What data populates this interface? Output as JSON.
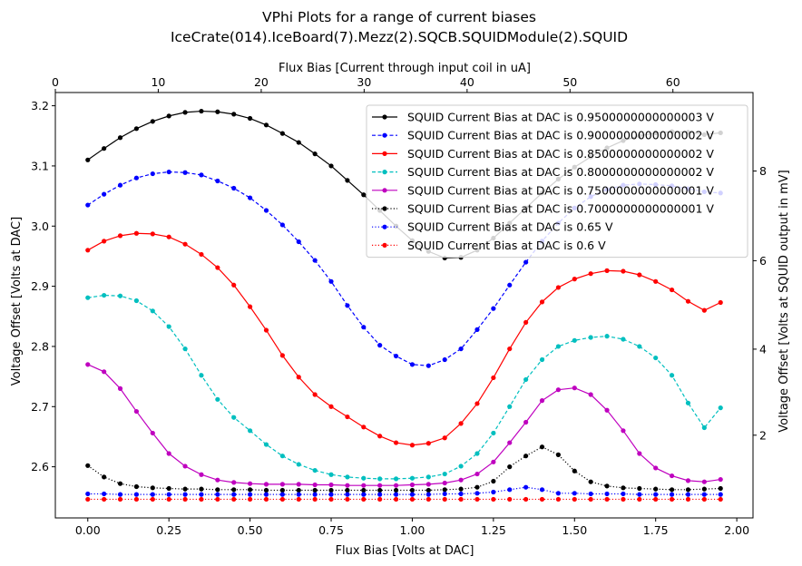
{
  "chart_data": {
    "type": "line",
    "title": [
      "VPhi Plots for a range of current biases",
      "IceCrate(014).IceBoard(7).Mezz(2).SQCB.SQUIDModule(2).SQUID"
    ],
    "xlabel": "Flux Bias [Volts at DAC]",
    "ylabel": "Voltage Offset [Volts at DAC]",
    "top_xlabel": "Flux Bias [Current through input coil in uA]",
    "right_ylabel": "Voltage Offset [Volts at SQUID output in mV]",
    "xlim": [
      -0.1,
      2.05
    ],
    "ylim": [
      2.515,
      3.222
    ],
    "x_ticks": [
      0.0,
      0.25,
      0.5,
      0.75,
      1.0,
      1.25,
      1.5,
      1.75,
      2.0
    ],
    "x_tick_labels": [
      "0.00",
      "0.25",
      "0.50",
      "0.75",
      "1.00",
      "1.25",
      "1.50",
      "1.75",
      "2.00"
    ],
    "y_ticks": [
      2.6,
      2.7,
      2.8,
      2.9,
      3.0,
      3.1,
      3.2
    ],
    "y_tick_labels": [
      "2.6",
      "2.7",
      "2.8",
      "2.9",
      "3.0",
      "3.1",
      "3.2"
    ],
    "top_ticks": [
      {
        "x": 0.0,
        "label": "0"
      },
      {
        "x": 0.1475,
        "label": "10"
      },
      {
        "x": 0.2951,
        "label": "20"
      },
      {
        "x": 0.4426,
        "label": "30"
      },
      {
        "x": 0.5902,
        "label": "40"
      },
      {
        "x": 0.7377,
        "label": "50"
      },
      {
        "x": 0.8852,
        "label": "60"
      }
    ],
    "right_ticks": [
      {
        "y": 2.6525,
        "label": "2"
      },
      {
        "y": 2.7955,
        "label": "4"
      },
      {
        "y": 2.9425,
        "label": "6"
      },
      {
        "y": 3.0915,
        "label": "8"
      }
    ],
    "grid": false,
    "legend_position": "top-right",
    "x": [
      0.0,
      0.05,
      0.1,
      0.15,
      0.2,
      0.25,
      0.3,
      0.35,
      0.4,
      0.45,
      0.5,
      0.55,
      0.6,
      0.65,
      0.7,
      0.75,
      0.8,
      0.85,
      0.9,
      0.95,
      1.0,
      1.05,
      1.1,
      1.15,
      1.2,
      1.25,
      1.3,
      1.35,
      1.4,
      1.45,
      1.5,
      1.55,
      1.6,
      1.65,
      1.7,
      1.75,
      1.8,
      1.85,
      1.9,
      1.95
    ],
    "series": [
      {
        "name": "SQUID Current Bias at DAC is 0.9500000000000003 V",
        "color": "#000000",
        "dash": "solid",
        "values": [
          3.11,
          3.129,
          3.147,
          3.162,
          3.174,
          3.183,
          3.189,
          3.191,
          3.19,
          3.186,
          3.179,
          3.168,
          3.154,
          3.139,
          3.12,
          3.1,
          3.076,
          3.052,
          3.026,
          3.0,
          2.976,
          2.958,
          2.947,
          2.948,
          2.96,
          2.98,
          3.005,
          3.03,
          3.055,
          3.078,
          3.098,
          3.115,
          3.13,
          3.142,
          3.15,
          3.155,
          3.157,
          3.156,
          3.152,
          3.155
        ]
      },
      {
        "name": "SQUID Current Bias at DAC is 0.9000000000000002 V",
        "color": "#0000ff",
        "dash": "dashed",
        "values": [
          3.035,
          3.053,
          3.068,
          3.08,
          3.087,
          3.09,
          3.089,
          3.085,
          3.075,
          3.063,
          3.047,
          3.026,
          3.002,
          2.974,
          2.943,
          2.908,
          2.868,
          2.832,
          2.802,
          2.784,
          2.77,
          2.768,
          2.778,
          2.796,
          2.828,
          2.863,
          2.902,
          2.94,
          2.975,
          3.005,
          3.03,
          3.049,
          3.061,
          3.068,
          3.07,
          3.069,
          3.067,
          3.062,
          3.057,
          3.055
        ]
      },
      {
        "name": "SQUID Current Bias at DAC is 0.8500000000000002 V",
        "color": "#ff0000",
        "dash": "solid",
        "values": [
          2.96,
          2.975,
          2.984,
          2.988,
          2.987,
          2.982,
          2.97,
          2.953,
          2.931,
          2.902,
          2.866,
          2.827,
          2.785,
          2.749,
          2.72,
          2.7,
          2.683,
          2.666,
          2.651,
          2.64,
          2.636,
          2.639,
          2.648,
          2.672,
          2.705,
          2.748,
          2.796,
          2.84,
          2.874,
          2.898,
          2.912,
          2.921,
          2.926,
          2.925,
          2.919,
          2.908,
          2.894,
          2.875,
          2.86,
          2.873
        ]
      },
      {
        "name": "SQUID Current Bias at DAC is 0.8000000000000002 V",
        "color": "#00bfbf",
        "dash": "dashed",
        "values": [
          2.881,
          2.885,
          2.884,
          2.876,
          2.859,
          2.833,
          2.796,
          2.752,
          2.712,
          2.682,
          2.66,
          2.637,
          2.618,
          2.604,
          2.594,
          2.587,
          2.583,
          2.581,
          2.58,
          2.58,
          2.581,
          2.583,
          2.588,
          2.601,
          2.622,
          2.656,
          2.7,
          2.745,
          2.778,
          2.8,
          2.81,
          2.815,
          2.817,
          2.812,
          2.8,
          2.781,
          2.752,
          2.706,
          2.665,
          2.698
        ]
      },
      {
        "name": "SQUID Current Bias at DAC is 0.7500000000000001 V",
        "color": "#bf00bf",
        "dash": "solid",
        "values": [
          2.77,
          2.758,
          2.73,
          2.692,
          2.656,
          2.622,
          2.601,
          2.587,
          2.578,
          2.574,
          2.572,
          2.571,
          2.571,
          2.571,
          2.57,
          2.57,
          2.569,
          2.569,
          2.569,
          2.569,
          2.57,
          2.571,
          2.573,
          2.578,
          2.588,
          2.608,
          2.64,
          2.674,
          2.71,
          2.728,
          2.731,
          2.72,
          2.694,
          2.66,
          2.622,
          2.598,
          2.585,
          2.577,
          2.575,
          2.579
        ]
      },
      {
        "name": "SQUID Current Bias at DAC is 0.7000000000000001 V",
        "color": "#000000",
        "dash": "dotted",
        "values": [
          2.602,
          2.583,
          2.572,
          2.567,
          2.565,
          2.564,
          2.563,
          2.563,
          2.562,
          2.562,
          2.562,
          2.561,
          2.561,
          2.561,
          2.561,
          2.561,
          2.561,
          2.561,
          2.561,
          2.561,
          2.561,
          2.561,
          2.562,
          2.563,
          2.566,
          2.576,
          2.6,
          2.618,
          2.633,
          2.62,
          2.593,
          2.575,
          2.568,
          2.565,
          2.564,
          2.563,
          2.562,
          2.562,
          2.563,
          2.564
        ]
      },
      {
        "name": "SQUID Current Bias at DAC is 0.65 V",
        "color": "#0000ff",
        "dash": "dotted",
        "values": [
          2.555,
          2.555,
          2.554,
          2.554,
          2.554,
          2.554,
          2.554,
          2.554,
          2.554,
          2.554,
          2.554,
          2.554,
          2.554,
          2.554,
          2.554,
          2.554,
          2.554,
          2.554,
          2.554,
          2.554,
          2.554,
          2.554,
          2.555,
          2.555,
          2.556,
          2.558,
          2.562,
          2.566,
          2.562,
          2.556,
          2.556,
          2.555,
          2.555,
          2.555,
          2.554,
          2.554,
          2.554,
          2.554,
          2.554,
          2.554
        ]
      },
      {
        "name": "SQUID Current Bias at DAC is 0.6 V",
        "color": "#ff0000",
        "dash": "dotted",
        "values": [
          2.546,
          2.546,
          2.546,
          2.546,
          2.546,
          2.546,
          2.546,
          2.546,
          2.546,
          2.546,
          2.546,
          2.546,
          2.546,
          2.546,
          2.546,
          2.546,
          2.546,
          2.546,
          2.546,
          2.546,
          2.546,
          2.546,
          2.546,
          2.546,
          2.546,
          2.546,
          2.546,
          2.546,
          2.546,
          2.546,
          2.546,
          2.546,
          2.546,
          2.546,
          2.546,
          2.546,
          2.546,
          2.546,
          2.546,
          2.546
        ]
      }
    ]
  }
}
